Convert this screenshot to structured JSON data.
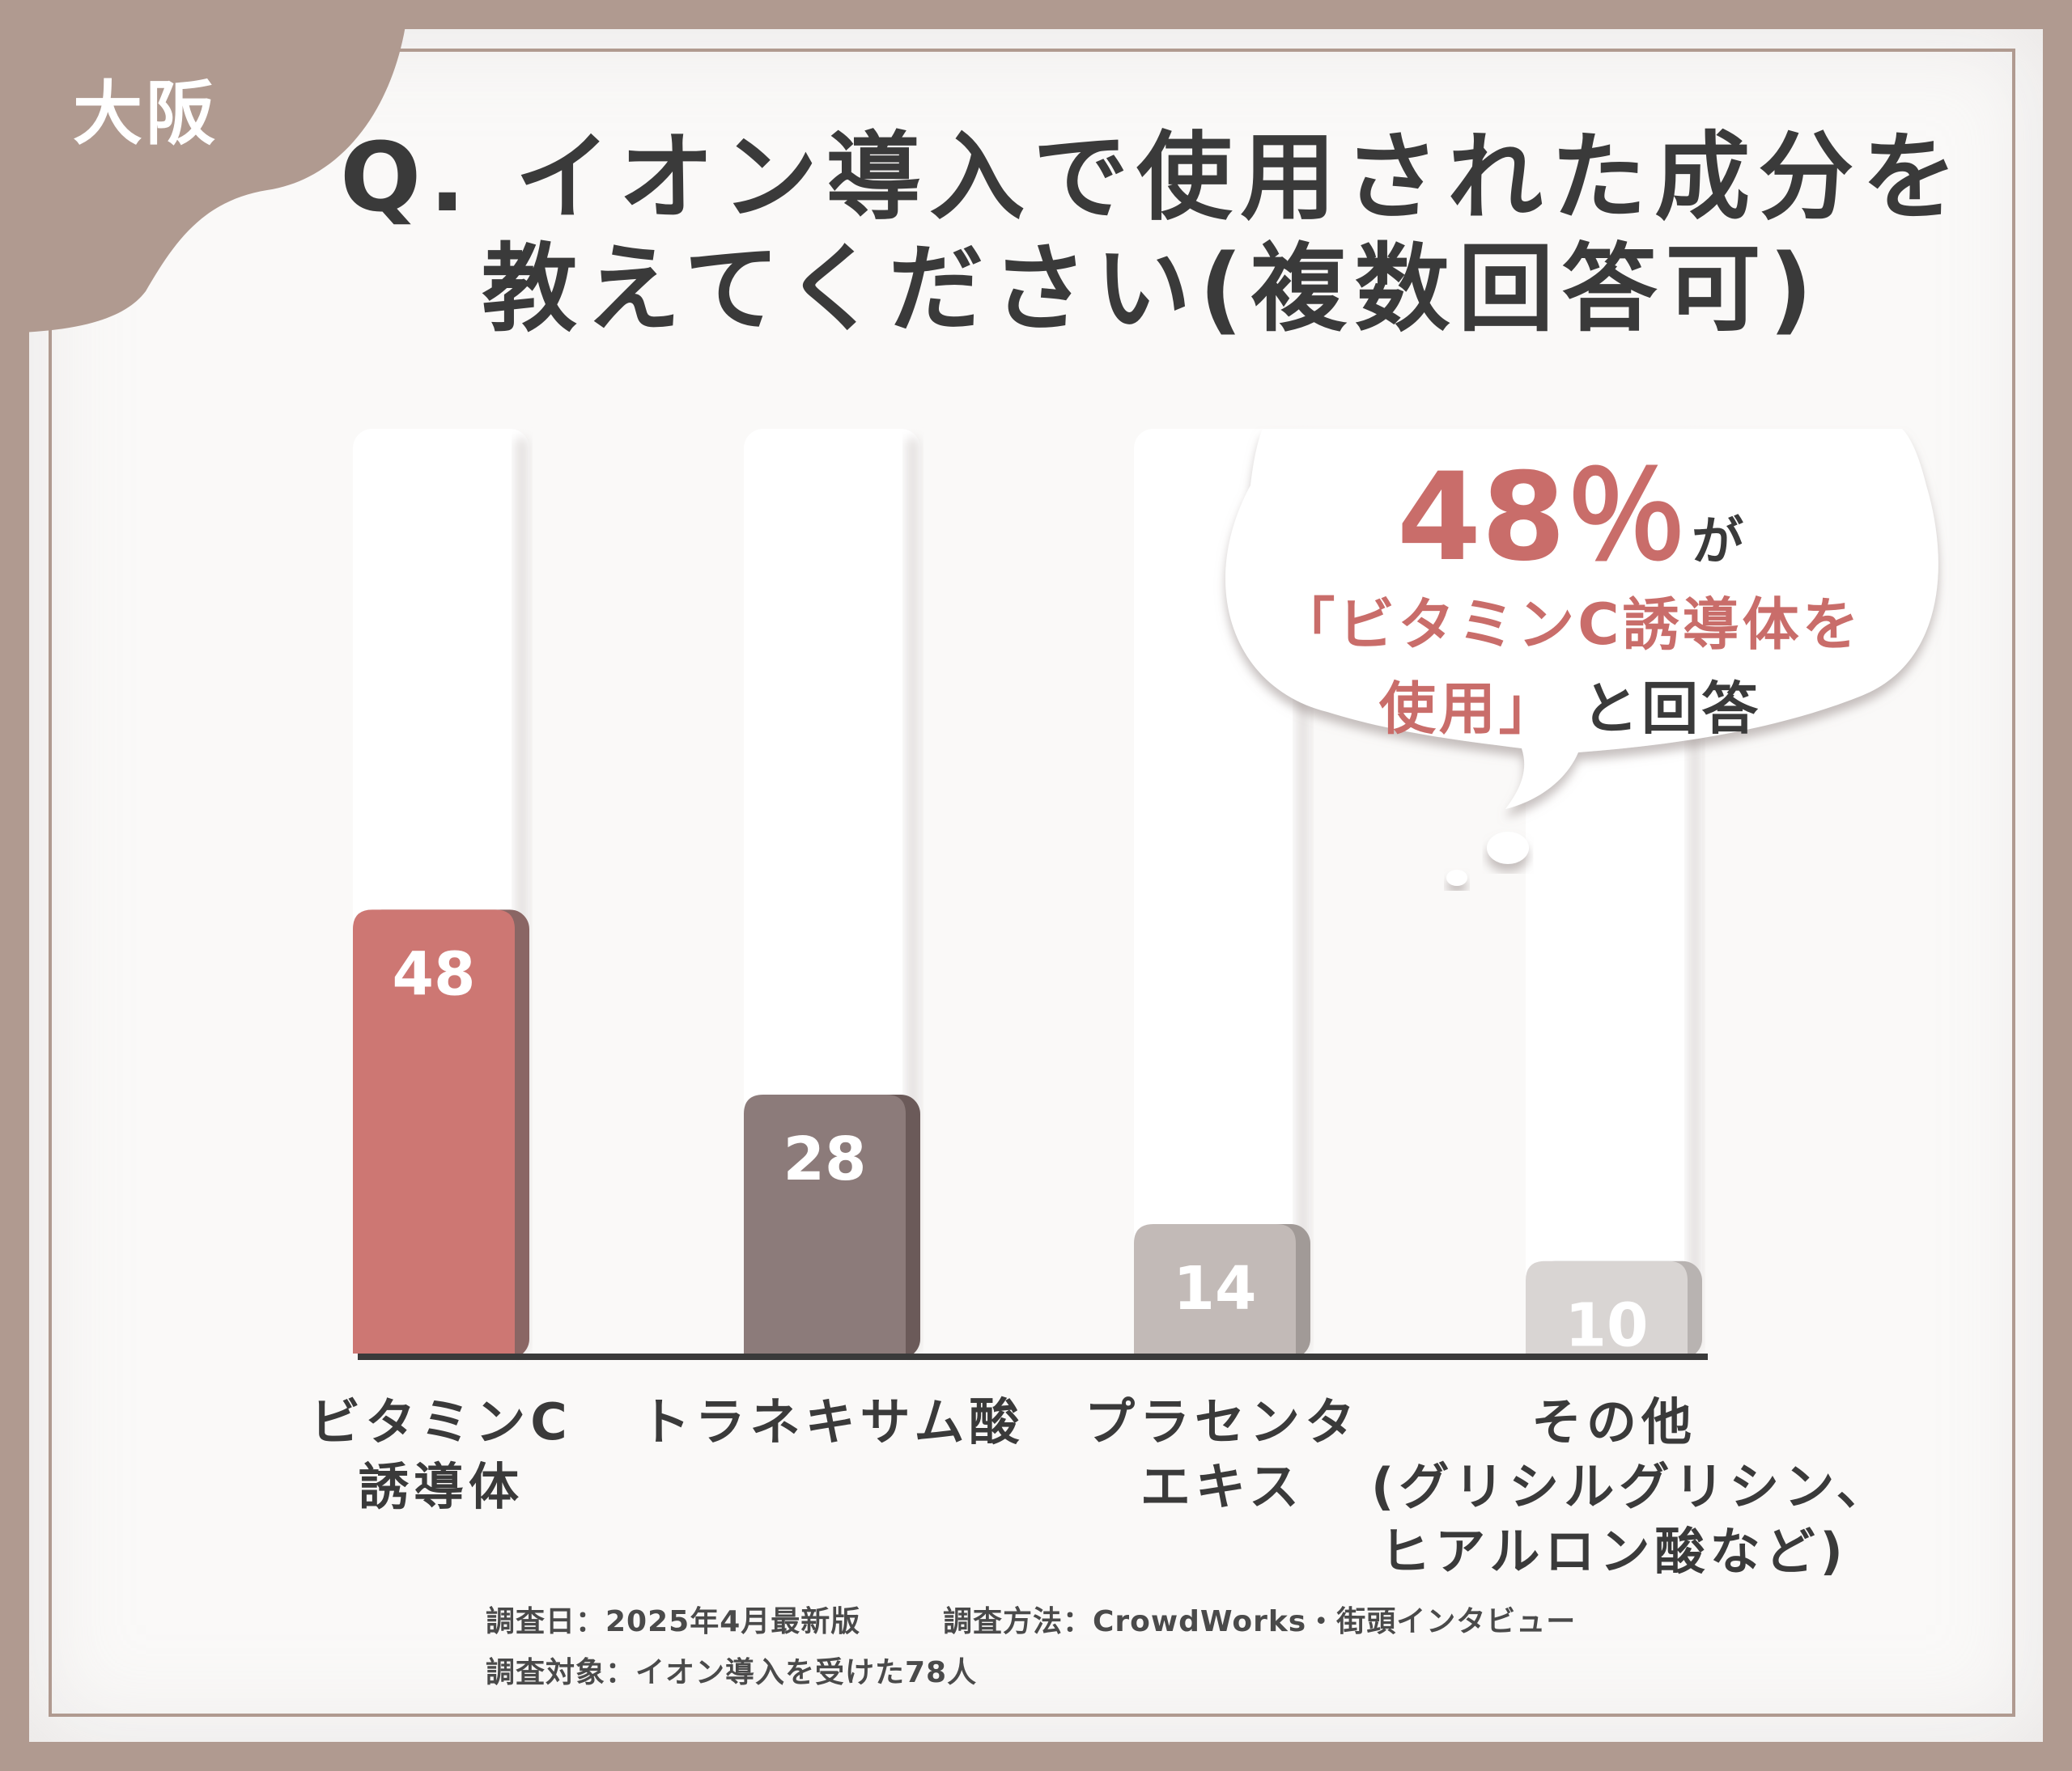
{
  "region_badge": "大阪",
  "question": {
    "line1": "Q. イオン導入で使用された成分を",
    "line2": "教えてください(複数回答可)"
  },
  "callout": {
    "percent": "48％",
    "suffix": "が",
    "line2": "「ビタミンC誘導体を",
    "line3_highlight": "使用」",
    "line3_rest": "と回答"
  },
  "chart_data": {
    "type": "bar",
    "categories": [
      "ビタミンC誘導体",
      "トラネキサム酸",
      "プラセンタエキス",
      "その他(グリシルグリシン、ヒアルロン酸など)"
    ],
    "category_labels": [
      [
        "ビタミンC",
        "誘導体"
      ],
      [
        "トラネキサム酸"
      ],
      [
        "プラセンタ",
        "エキス"
      ],
      [
        "その他",
        "(グリシルグリシン、",
        "ヒアルロン酸など)"
      ]
    ],
    "values": [
      48,
      28,
      14,
      10
    ],
    "value_labels": [
      "48",
      "28",
      "14",
      "10"
    ],
    "ylim": [
      0,
      100
    ],
    "colors": [
      "#cd7773",
      "#8c7b7a",
      "#c2bab7",
      "#d9d5d3"
    ],
    "side_colors": [
      "#8a6664",
      "#6b5a59",
      "#a19a97",
      "#b8b3b1"
    ],
    "title": "Q. イオン導入で使用された成分を教えてください(複数回答可)",
    "xlabel": "",
    "ylabel": "",
    "grid": false
  },
  "footnotes": {
    "date": "調査日：2025年4月最新版",
    "method": "調査方法：CrowdWorks・街頭インタビュー",
    "target": "調査対象：イオン導入を受けた78人"
  },
  "colors": {
    "frame": "#b09a90",
    "accent": "#c96d6a",
    "text": "#3a3a3a"
  }
}
